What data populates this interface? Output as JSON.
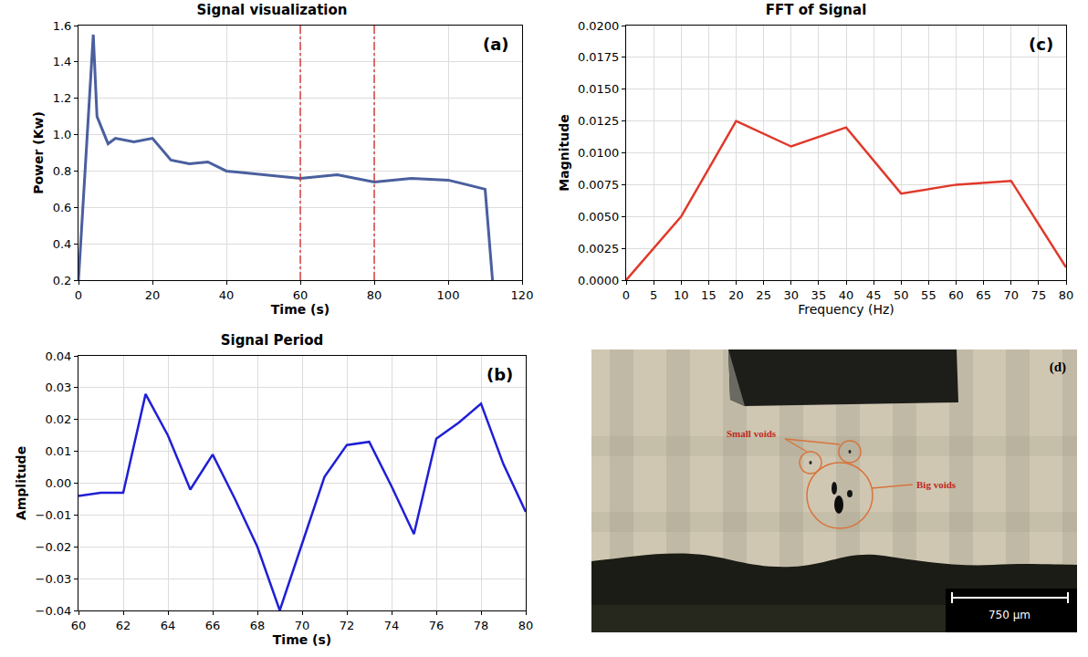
{
  "chart_data": [
    {
      "type": "line",
      "title": "Signal visualization",
      "x_label": "Time (s)",
      "y_label": "Power (Kw)",
      "annotations": [
        "(a)"
      ],
      "x": [
        0,
        4,
        5,
        8,
        10,
        15,
        20,
        25,
        30,
        35,
        40,
        50,
        60,
        70,
        80,
        90,
        100,
        110,
        112
      ],
      "values": [
        0.2,
        1.55,
        1.1,
        0.95,
        0.98,
        0.96,
        0.98,
        0.86,
        0.84,
        0.85,
        0.8,
        0.78,
        0.76,
        0.78,
        0.74,
        0.76,
        0.75,
        0.7,
        0.2
      ],
      "color": "#4a5f9e",
      "vlines": {
        "x": [
          60,
          80
        ],
        "color": "#d62728",
        "line_style": "dashdot"
      },
      "xlim": [
        0,
        120
      ],
      "xticks": [
        0,
        20,
        40,
        60,
        80,
        100,
        120
      ],
      "ylim": [
        0.2,
        1.6
      ],
      "yticks": [
        0.2,
        0.4,
        0.6,
        0.8,
        {
          "value": 1,
          "label": "1.0"
        },
        1.2,
        1.4,
        1.6
      ],
      "grid": true
    },
    {
      "type": "line",
      "title": "FFT of Signal",
      "x_label": "Frequency (Hz)",
      "y_label": "Magnitude",
      "annotations": [
        "(c)"
      ],
      "x": [
        0,
        10,
        20,
        30,
        40,
        50,
        60,
        70,
        80
      ],
      "values": [
        0,
        0.005,
        0.0125,
        0.0105,
        0.012,
        0.0068,
        0.0075,
        0.0078,
        0.001
      ],
      "color": "#e0392b",
      "xlim": [
        0,
        80
      ],
      "xticks": [
        0,
        5,
        10,
        15,
        20,
        25,
        30,
        35,
        40,
        45,
        50,
        55,
        60,
        65,
        70,
        75,
        80
      ],
      "ylim": [
        0,
        0.02
      ],
      "yticks": [
        {
          "value": 0,
          "label": "0.0000"
        },
        {
          "value": 0.0025,
          "label": "0.0025"
        },
        {
          "value": 0.005,
          "label": "0.0050"
        },
        {
          "value": 0.0075,
          "label": "0.0075"
        },
        {
          "value": 0.01,
          "label": "0.0100"
        },
        {
          "value": 0.0125,
          "label": "0.0125"
        },
        {
          "value": 0.015,
          "label": "0.0150"
        },
        {
          "value": 0.0175,
          "label": "0.0175"
        },
        {
          "value": 0.02,
          "label": "0.0200"
        }
      ],
      "grid": true
    },
    {
      "type": "line",
      "title": "Signal Period",
      "x_label": "Time (s)",
      "y_label": "Amplitude",
      "annotations": [
        "(b)"
      ],
      "x": [
        60,
        61,
        62,
        63,
        64,
        65,
        66,
        67,
        68,
        69,
        70,
        71,
        72,
        73,
        74,
        75,
        76,
        77,
        78,
        79,
        80
      ],
      "values": [
        -0.004,
        -0.003,
        -0.003,
        0.028,
        0.015,
        -0.002,
        0.009,
        -0.005,
        -0.02,
        -0.04,
        -0.019,
        0.002,
        0.012,
        0.013,
        -0.001,
        -0.016,
        0.014,
        0.019,
        0.025,
        0.006,
        -0.009
      ],
      "color": "#1f1fd6",
      "xlim": [
        60,
        80
      ],
      "xticks": [
        60,
        62,
        64,
        66,
        68,
        70,
        72,
        74,
        76,
        78,
        80
      ],
      "ylim": [
        -0.04,
        0.04
      ],
      "yticks": [
        {
          "value": -0.04,
          "label": "−0.04"
        },
        {
          "value": -0.03,
          "label": "−0.03"
        },
        {
          "value": -0.02,
          "label": "−0.02"
        },
        {
          "value": -0.01,
          "label": "−0.01"
        },
        {
          "value": 0,
          "label": "0.00"
        },
        {
          "value": 0.01,
          "label": "0.01"
        },
        {
          "value": 0.02,
          "label": "0.02"
        },
        {
          "value": 0.03,
          "label": "0.03"
        },
        {
          "value": 0.04,
          "label": "0.04"
        }
      ],
      "grid": true
    }
  ],
  "micrograph": {
    "label": "(d)",
    "annotations": [
      "Small voids",
      "Big voids"
    ],
    "scale_bar": "750 µm"
  }
}
